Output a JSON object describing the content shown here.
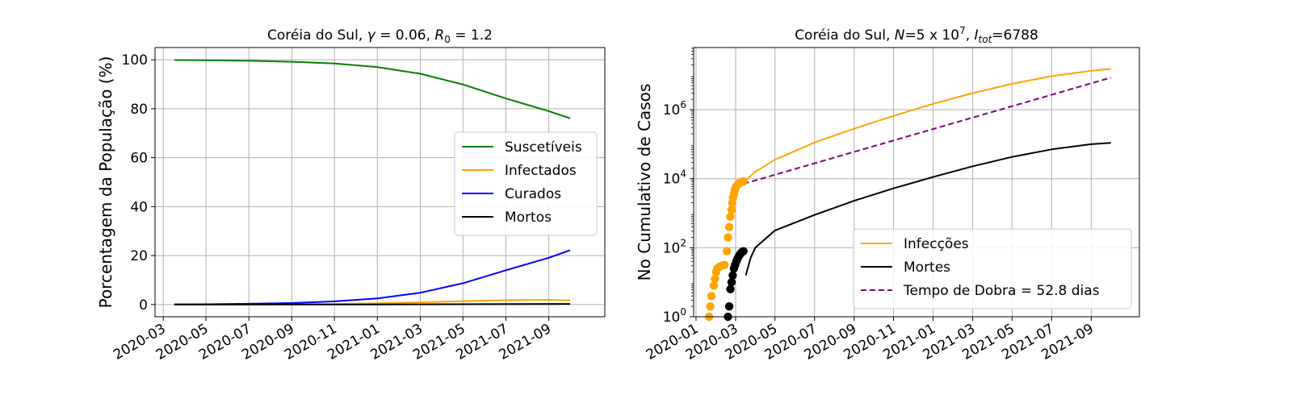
{
  "chart_data": [
    {
      "type": "line",
      "title": "Coréia do Sul, γ = 0.06, R₀ = 1.2",
      "title_parts": [
        "Coréia do Sul, ",
        "γ",
        " = 0.06, ",
        "R",
        "0",
        " = 1.2"
      ],
      "xlabel": "",
      "ylabel": "Porcentagem da População (%)",
      "xlim": [
        2020.135,
        2021.885
      ],
      "ylim": [
        -5,
        105
      ],
      "grid": true,
      "legend_position": "center-right",
      "xticks": [
        {
          "value": 2020.167,
          "label": "2020-03"
        },
        {
          "value": 2020.333,
          "label": "2020-05"
        },
        {
          "value": 2020.5,
          "label": "2020-07"
        },
        {
          "value": 2020.667,
          "label": "2020-09"
        },
        {
          "value": 2020.833,
          "label": "2020-11"
        },
        {
          "value": 2021.0,
          "label": "2021-01"
        },
        {
          "value": 2021.167,
          "label": "2021-03"
        },
        {
          "value": 2021.333,
          "label": "2021-05"
        },
        {
          "value": 2021.5,
          "label": "2021-07"
        },
        {
          "value": 2021.667,
          "label": "2021-09"
        }
      ],
      "yticks": [
        {
          "value": 0,
          "label": "0"
        },
        {
          "value": 20,
          "label": "20"
        },
        {
          "value": 40,
          "label": "40"
        },
        {
          "value": 60,
          "label": "60"
        },
        {
          "value": 80,
          "label": "80"
        },
        {
          "value": 100,
          "label": "100"
        }
      ],
      "series": [
        {
          "name": "Suscetíveis",
          "color": "#008000",
          "style": "solid",
          "x": [
            2020.21,
            2020.333,
            2020.5,
            2020.667,
            2020.833,
            2021.0,
            2021.167,
            2021.333,
            2021.5,
            2021.667,
            2021.75
          ],
          "y": [
            99.9,
            99.8,
            99.6,
            99.2,
            98.5,
            97.0,
            94.3,
            89.9,
            84.2,
            79.0,
            76.1
          ]
        },
        {
          "name": "Infectados",
          "color": "#FFA500",
          "style": "solid",
          "x": [
            2020.21,
            2020.5,
            2020.833,
            2021.0,
            2021.167,
            2021.333,
            2021.5,
            2021.667,
            2021.75
          ],
          "y": [
            0.0,
            0.05,
            0.2,
            0.5,
            0.9,
            1.4,
            1.8,
            1.9,
            1.7
          ]
        },
        {
          "name": "Curados",
          "color": "#0000FF",
          "style": "solid",
          "x": [
            2020.21,
            2020.333,
            2020.5,
            2020.667,
            2020.833,
            2021.0,
            2021.167,
            2021.333,
            2021.5,
            2021.667,
            2021.75
          ],
          "y": [
            0.0,
            0.1,
            0.3,
            0.6,
            1.3,
            2.5,
            4.8,
            8.7,
            14.0,
            19.1,
            22.2
          ]
        },
        {
          "name": "Mortos",
          "color": "#000000",
          "style": "solid",
          "x": [
            2020.21,
            2021.0,
            2021.75
          ],
          "y": [
            0.0,
            0.03,
            0.25
          ]
        }
      ]
    },
    {
      "type": "line",
      "yscale": "log",
      "title": "Coréia do Sul, N=5 x 10⁷, I_tot=6788",
      "title_parts": [
        "Coréia do Sul, ",
        "N",
        "=5 x 10",
        "7",
        ", ",
        "I",
        "tot",
        "=6788"
      ],
      "xlabel": "",
      "ylabel": "No Cumulativo de Casos",
      "xlim": [
        2019.99,
        2021.87
      ],
      "ylim_log10": [
        0,
        7.8
      ],
      "grid": true,
      "legend_position": "lower-right",
      "xticks": [
        {
          "value": 2020.0,
          "label": "2020-01"
        },
        {
          "value": 2020.167,
          "label": "2020-03"
        },
        {
          "value": 2020.333,
          "label": "2020-05"
        },
        {
          "value": 2020.5,
          "label": "2020-07"
        },
        {
          "value": 2020.667,
          "label": "2020-09"
        },
        {
          "value": 2020.833,
          "label": "2020-11"
        },
        {
          "value": 2021.0,
          "label": "2021-01"
        },
        {
          "value": 2021.167,
          "label": "2021-03"
        },
        {
          "value": 2021.333,
          "label": "2021-05"
        },
        {
          "value": 2021.5,
          "label": "2021-07"
        },
        {
          "value": 2021.667,
          "label": "2021-09"
        }
      ],
      "yticks": [
        {
          "exp": 0,
          "base": "10",
          "sup": "0"
        },
        {
          "exp": 2,
          "base": "10",
          "sup": "2"
        },
        {
          "exp": 4,
          "base": "10",
          "sup": "4"
        },
        {
          "exp": 6,
          "base": "10",
          "sup": "6"
        }
      ],
      "series": [
        {
          "name": "Infecções",
          "color": "#FFA500",
          "style": "solid",
          "role": "line",
          "x": [
            2020.2,
            2020.25,
            2020.333,
            2020.5,
            2020.667,
            2020.833,
            2021.0,
            2021.167,
            2021.333,
            2021.5,
            2021.667,
            2021.75
          ],
          "log10y": [
            3.9,
            4.2,
            4.55,
            5.05,
            5.45,
            5.82,
            6.17,
            6.48,
            6.75,
            6.97,
            7.13,
            7.18
          ]
        },
        {
          "name": "Mortes",
          "color": "#000000",
          "style": "solid",
          "role": "line",
          "x": [
            2020.21,
            2020.23,
            2020.25,
            2020.333,
            2020.5,
            2020.667,
            2020.833,
            2021.0,
            2021.167,
            2021.333,
            2021.5,
            2021.667,
            2021.75
          ],
          "log10y": [
            1.2,
            1.7,
            2.0,
            2.5,
            2.95,
            3.36,
            3.72,
            4.05,
            4.36,
            4.63,
            4.85,
            5.0,
            5.04
          ]
        },
        {
          "name": "Tempo de Dobra = 52.8 dias",
          "color": "#800080",
          "style": "dashed",
          "role": "line",
          "x": [
            2020.2,
            2021.75
          ],
          "log10y": [
            3.85,
            6.93
          ]
        },
        {
          "name": "Infecções (dados)",
          "color": "#FFA500",
          "role": "scatter",
          "x": [
            2020.055,
            2020.06,
            2020.065,
            2020.075,
            2020.08,
            2020.085,
            2020.09,
            2020.1,
            2020.11,
            2020.12,
            2020.13,
            2020.135,
            2020.14,
            2020.145,
            2020.15,
            2020.153,
            2020.156,
            2020.16,
            2020.163,
            2020.166,
            2020.17,
            2020.175,
            2020.18,
            2020.185,
            2020.19,
            2020.195,
            2020.2
          ],
          "log10y": [
            0.0,
            0.3,
            0.6,
            0.9,
            1.1,
            1.3,
            1.4,
            1.45,
            1.48,
            1.5,
            1.9,
            2.3,
            2.6,
            2.9,
            3.1,
            3.3,
            3.45,
            3.55,
            3.65,
            3.72,
            3.78,
            3.82,
            3.86,
            3.88,
            3.9,
            3.91,
            3.92
          ]
        },
        {
          "name": "Mortes (dados)",
          "color": "#000000",
          "role": "scatter",
          "x": [
            2020.135,
            2020.14,
            2020.145,
            2020.15,
            2020.155,
            2020.16,
            2020.165,
            2020.17,
            2020.175,
            2020.18,
            2020.185,
            2020.19,
            2020.195,
            2020.2
          ],
          "log10y": [
            0.0,
            0.3,
            0.8,
            1.0,
            1.2,
            1.4,
            1.5,
            1.6,
            1.68,
            1.75,
            1.8,
            1.85,
            1.88,
            1.9
          ]
        }
      ],
      "legend": [
        {
          "label": "Infecções",
          "color": "#FFA500",
          "style": "solid"
        },
        {
          "label": "Mortes",
          "color": "#000000",
          "style": "solid"
        },
        {
          "label": "Tempo de Dobra = 52.8 dias",
          "color": "#800080",
          "style": "dashed"
        }
      ]
    }
  ]
}
